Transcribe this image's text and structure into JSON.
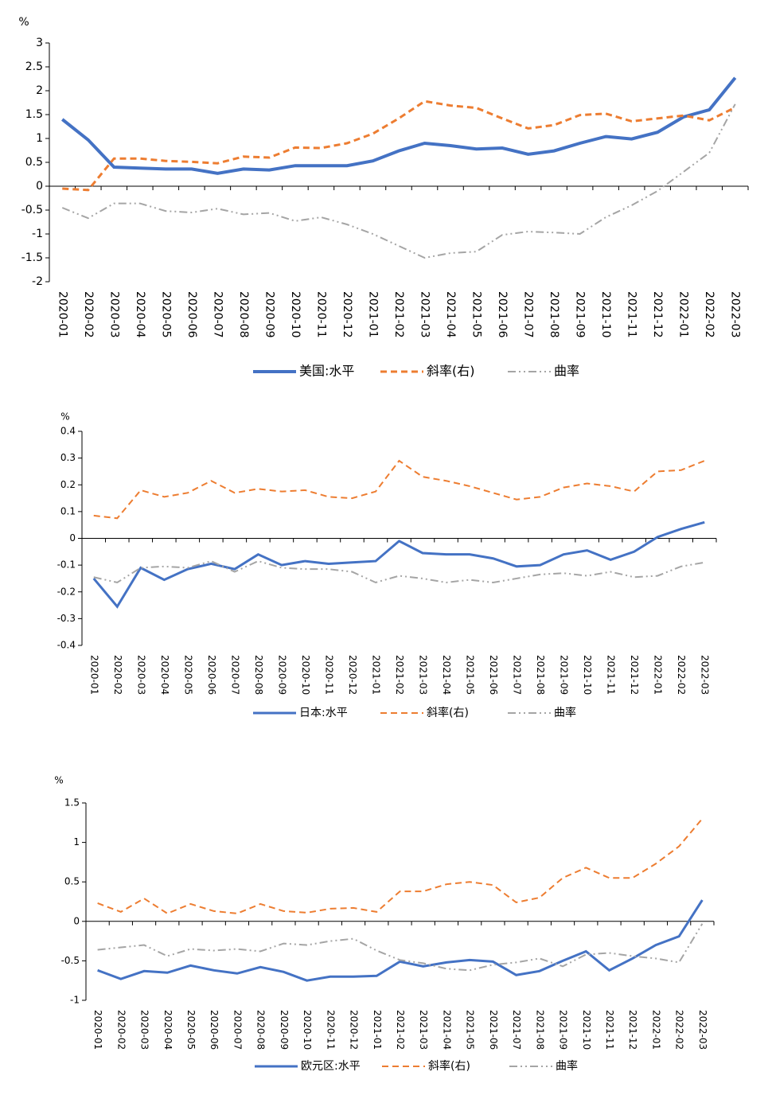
{
  "chart_data": [
    {
      "type": "line",
      "y_label": "%",
      "ylim": [
        -2,
        3
      ],
      "yticks": [
        -2,
        -1.5,
        -1,
        -0.5,
        0,
        0.5,
        1,
        1.5,
        2,
        2.5,
        3
      ],
      "categories": [
        "2020-01",
        "2020-02",
        "2020-03",
        "2020-04",
        "2020-05",
        "2020-06",
        "2020-07",
        "2020-08",
        "2020-09",
        "2020-10",
        "2020-11",
        "2020-12",
        "2021-01",
        "2021-02",
        "2021-03",
        "2021-04",
        "2021-05",
        "2021-06",
        "2021-07",
        "2021-08",
        "2021-09",
        "2021-10",
        "2021-11",
        "2021-12",
        "2022-01",
        "2022-02",
        "2022-03"
      ],
      "series": [
        {
          "name": "美国:水平",
          "color": "#4472c4",
          "values": [
            1.4,
            0.97,
            0.4,
            0.38,
            0.36,
            0.36,
            0.27,
            0.36,
            0.34,
            0.43,
            0.43,
            0.43,
            0.53,
            0.74,
            0.9,
            0.85,
            0.78,
            0.8,
            0.67,
            0.74,
            0.9,
            1.04,
            0.99,
            1.13,
            1.45,
            1.6,
            2.27
          ]
        },
        {
          "name": "斜率(右)",
          "color": "#ed7d31",
          "values": [
            -0.05,
            -0.08,
            0.58,
            0.58,
            0.53,
            0.51,
            0.48,
            0.62,
            0.6,
            0.81,
            0.8,
            0.9,
            1.1,
            1.42,
            1.78,
            1.69,
            1.64,
            1.42,
            1.21,
            1.28,
            1.49,
            1.52,
            1.36,
            1.42,
            1.48,
            1.38,
            1.65
          ]
        },
        {
          "name": "曲率",
          "color": "#a5a5a5",
          "values": [
            -0.45,
            -0.67,
            -0.36,
            -0.36,
            -0.52,
            -0.55,
            -0.47,
            -0.59,
            -0.56,
            -0.73,
            -0.65,
            -0.8,
            -1.0,
            -1.25,
            -1.5,
            -1.4,
            -1.37,
            -1.02,
            -0.95,
            -0.97,
            -1.0,
            -0.65,
            -0.4,
            -0.1,
            0.3,
            0.7,
            1.72
          ]
        }
      ]
    },
    {
      "type": "line",
      "y_label": "%",
      "ylim": [
        -0.4,
        0.4
      ],
      "yticks": [
        -0.4,
        -0.3,
        -0.2,
        -0.1,
        0,
        0.1,
        0.2,
        0.3,
        0.4
      ],
      "categories": [
        "2020-01",
        "2020-02",
        "2020-03",
        "2020-04",
        "2020-05",
        "2020-06",
        "2020-07",
        "2020-08",
        "2020-09",
        "2020-10",
        "2020-11",
        "2020-12",
        "2021-01",
        "2021-02",
        "2021-03",
        "2021-04",
        "2021-05",
        "2021-06",
        "2021-07",
        "2021-08",
        "2021-09",
        "2021-10",
        "2021-11",
        "2021-12",
        "2022-01",
        "2022-02",
        "2022-03"
      ],
      "series": [
        {
          "name": "日本:水平",
          "color": "#4472c4",
          "values": [
            -0.15,
            -0.255,
            -0.11,
            -0.155,
            -0.115,
            -0.095,
            -0.115,
            -0.06,
            -0.1,
            -0.085,
            -0.095,
            -0.09,
            -0.085,
            -0.01,
            -0.055,
            -0.06,
            -0.06,
            -0.075,
            -0.105,
            -0.1,
            -0.06,
            -0.045,
            -0.08,
            -0.05,
            0.005,
            0.035,
            0.06
          ]
        },
        {
          "name": "斜率(右)",
          "color": "#ed7d31",
          "values": [
            0.085,
            0.075,
            0.18,
            0.155,
            0.17,
            0.215,
            0.17,
            0.185,
            0.175,
            0.18,
            0.155,
            0.15,
            0.175,
            0.29,
            0.23,
            0.215,
            0.195,
            0.17,
            0.145,
            0.155,
            0.19,
            0.205,
            0.195,
            0.175,
            0.25,
            0.255,
            0.29
          ]
        },
        {
          "name": "曲率",
          "color": "#a5a5a5",
          "values": [
            -0.145,
            -0.165,
            -0.11,
            -0.105,
            -0.11,
            -0.085,
            -0.125,
            -0.085,
            -0.11,
            -0.115,
            -0.115,
            -0.125,
            -0.165,
            -0.14,
            -0.15,
            -0.165,
            -0.155,
            -0.165,
            -0.15,
            -0.135,
            -0.13,
            -0.14,
            -0.125,
            -0.145,
            -0.14,
            -0.105,
            -0.09
          ]
        }
      ]
    },
    {
      "type": "line",
      "y_label": "%",
      "ylim": [
        -1,
        1.5
      ],
      "yticks": [
        -1,
        -0.5,
        0,
        0.5,
        1,
        1.5
      ],
      "categories": [
        "2020-01",
        "2020-02",
        "2020-03",
        "2020-04",
        "2020-05",
        "2020-06",
        "2020-07",
        "2020-08",
        "2020-09",
        "2020-10",
        "2020-11",
        "2020-12",
        "2021-01",
        "2021-02",
        "2021-03",
        "2021-04",
        "2021-05",
        "2021-06",
        "2021-07",
        "2021-08",
        "2021-09",
        "2021-10",
        "2021-11",
        "2021-12",
        "2022-01",
        "2022-02",
        "2022-03"
      ],
      "series": [
        {
          "name": "欧元区:水平",
          "color": "#4472c4",
          "values": [
            -0.62,
            -0.73,
            -0.63,
            -0.65,
            -0.56,
            -0.62,
            -0.66,
            -0.58,
            -0.64,
            -0.75,
            -0.7,
            -0.7,
            -0.69,
            -0.51,
            -0.57,
            -0.52,
            -0.49,
            -0.51,
            -0.68,
            -0.63,
            -0.5,
            -0.38,
            -0.62,
            -0.47,
            -0.3,
            -0.19,
            0.27
          ]
        },
        {
          "name": "斜率(右)",
          "color": "#ed7d31",
          "values": [
            0.23,
            0.12,
            0.29,
            0.1,
            0.22,
            0.13,
            0.1,
            0.22,
            0.13,
            0.11,
            0.16,
            0.17,
            0.12,
            0.38,
            0.38,
            0.47,
            0.5,
            0.46,
            0.24,
            0.3,
            0.55,
            0.68,
            0.55,
            0.55,
            0.73,
            0.95,
            1.3
          ]
        },
        {
          "name": "曲率",
          "color": "#a5a5a5",
          "values": [
            -0.36,
            -0.33,
            -0.3,
            -0.44,
            -0.35,
            -0.37,
            -0.35,
            -0.38,
            -0.28,
            -0.3,
            -0.25,
            -0.22,
            -0.37,
            -0.49,
            -0.53,
            -0.6,
            -0.62,
            -0.55,
            -0.52,
            -0.47,
            -0.57,
            -0.42,
            -0.4,
            -0.44,
            -0.47,
            -0.52,
            -0.03
          ]
        }
      ]
    }
  ]
}
